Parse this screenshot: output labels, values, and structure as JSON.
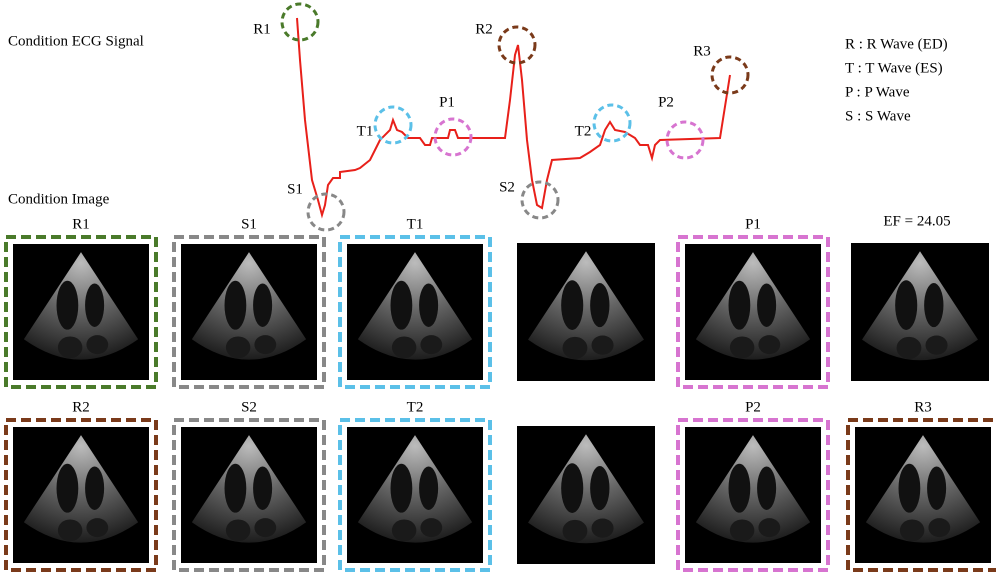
{
  "ecg": {
    "title": "Condition ECG Signal",
    "wave_labels": [
      "R1",
      "S1",
      "T1",
      "P1",
      "R2",
      "S2",
      "T2",
      "P2",
      "R3"
    ]
  },
  "legend": [
    "R : R Wave (ED)",
    "T : T Wave (ES)",
    "P : P Wave",
    "S : S Wave"
  ],
  "images": {
    "title": "Condition Image",
    "row1_labels": [
      "R1",
      "S1",
      "T1",
      "P1"
    ],
    "ef": "EF = 24.05",
    "row2_labels": [
      "R2",
      "S2",
      "T2",
      "P2",
      "R3"
    ]
  }
}
